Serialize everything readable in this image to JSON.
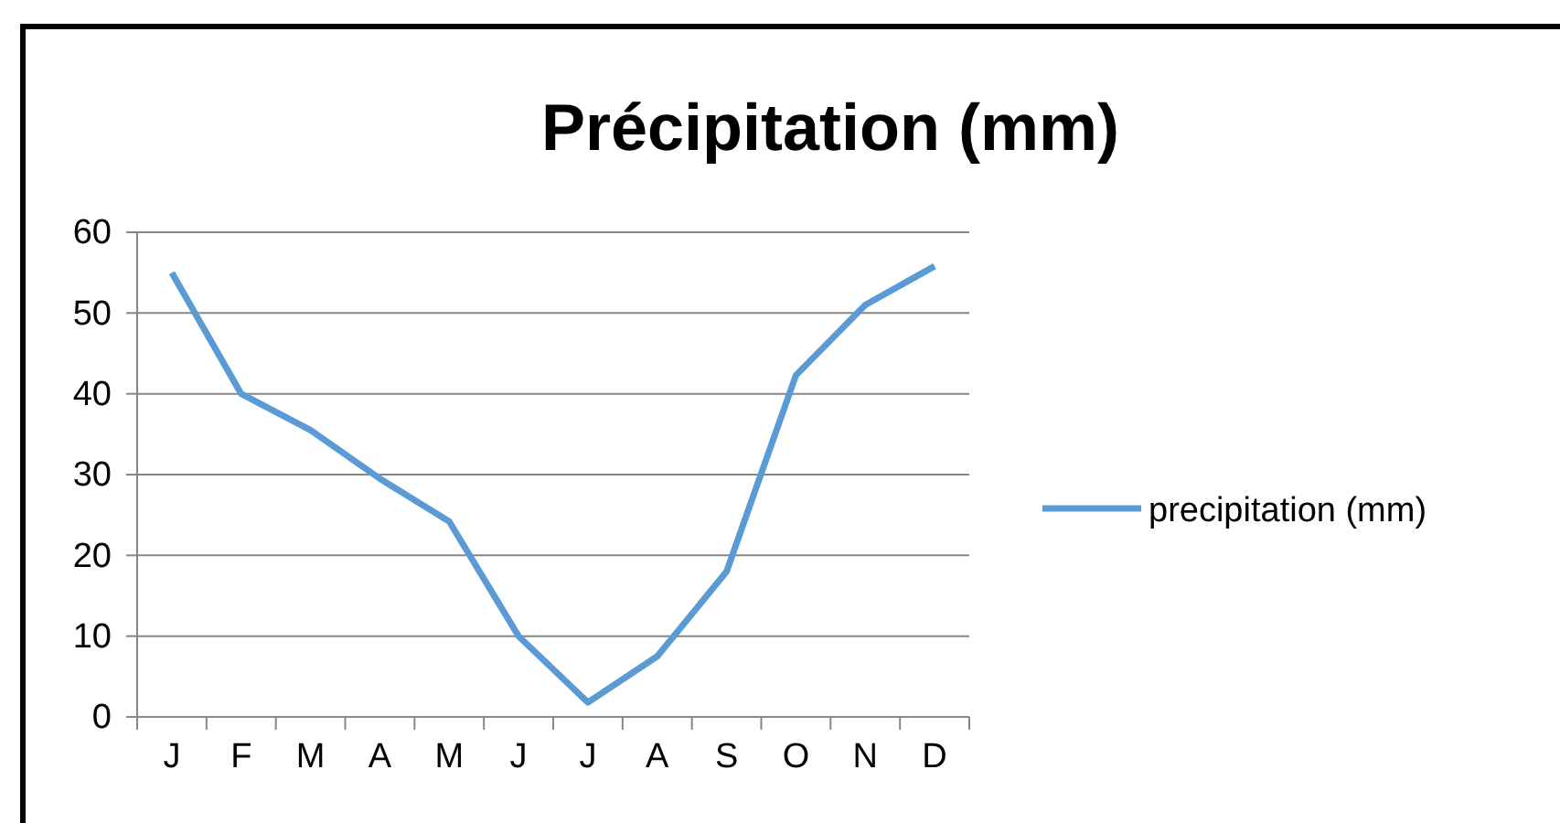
{
  "chart_data": {
    "type": "line",
    "title": "Précipitation (mm)",
    "categories": [
      "J",
      "F",
      "M",
      "A",
      "M",
      "J",
      "J",
      "A",
      "S",
      "O",
      "N",
      "D"
    ],
    "series": [
      {
        "name": "precipitation (mm)",
        "color": "#5b9bd5",
        "values": [
          55,
          40,
          35.5,
          29.5,
          24.2,
          10,
          1.8,
          7.5,
          18,
          42.3,
          51,
          55.8
        ]
      }
    ],
    "ylim": [
      0,
      60
    ],
    "yticks": [
      0,
      10,
      20,
      30,
      40,
      50,
      60
    ],
    "grid": "y",
    "legend": "right",
    "marker": "none",
    "line_style": "solid"
  }
}
